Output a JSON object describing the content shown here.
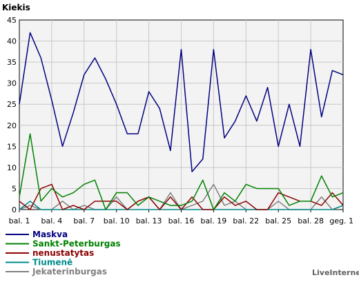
{
  "chart_data": {
    "type": "line",
    "title": "Kiekis",
    "watermark": "LiveInternet",
    "ylim": [
      0,
      45
    ],
    "yticks": [
      0,
      5,
      10,
      15,
      20,
      25,
      30,
      35,
      40,
      45
    ],
    "grid": true,
    "legend_position": "bottom-left",
    "x_tick_labels": [
      "bal. 1",
      "bal. 4",
      "bal. 7",
      "bal. 10",
      "bal. 13",
      "bal. 16",
      "bal. 19",
      "bal. 22",
      "bal. 25",
      "bal. 28",
      "geg. 1"
    ],
    "x_tick_indices": [
      1,
      4,
      7,
      10,
      13,
      16,
      19,
      22,
      25,
      28,
      31
    ],
    "x_count": 31,
    "series": [
      {
        "name": "Maskva",
        "color": "#000080",
        "values": [
          25,
          42,
          36,
          26,
          15,
          23,
          32,
          36,
          31,
          25,
          18,
          18,
          28,
          24,
          14,
          38,
          9,
          12,
          38,
          17,
          21,
          27,
          21,
          29,
          15,
          25,
          15,
          38,
          22,
          33,
          32
        ]
      },
      {
        "name": "Sankt-Peterburgas",
        "color": "#008000",
        "values": [
          3,
          18,
          2,
          5,
          3,
          4,
          6,
          7,
          0,
          4,
          4,
          1,
          3,
          2,
          1,
          1,
          2,
          7,
          0,
          4,
          2,
          6,
          5,
          5,
          5,
          1,
          2,
          2,
          8,
          3,
          4
        ]
      },
      {
        "name": "nenustatytas",
        "color": "#8b0000",
        "values": [
          2,
          0,
          5,
          6,
          0,
          1,
          0,
          2,
          2,
          2,
          0,
          2,
          3,
          0,
          3,
          0,
          3,
          0,
          0,
          3,
          1,
          2,
          0,
          0,
          4,
          3,
          2,
          2,
          1,
          4,
          1
        ]
      },
      {
        "name": "Tiumenė",
        "color": "#008b8b",
        "values": [
          0,
          2,
          0,
          0,
          0,
          0,
          0,
          0,
          0,
          0,
          0,
          0,
          0,
          0,
          0,
          0,
          0,
          0,
          0,
          0,
          0,
          0,
          0,
          0,
          0,
          0,
          0,
          0,
          0,
          0,
          1
        ]
      },
      {
        "name": "Jekaterinburgas",
        "color": "#808080",
        "values": [
          0,
          1,
          0,
          0,
          2,
          0,
          1,
          0,
          0,
          3,
          0,
          2,
          3,
          0,
          4,
          0,
          1,
          2,
          6,
          1,
          2,
          0,
          0,
          0,
          2,
          0,
          0,
          0,
          3,
          0,
          1
        ]
      }
    ]
  }
}
